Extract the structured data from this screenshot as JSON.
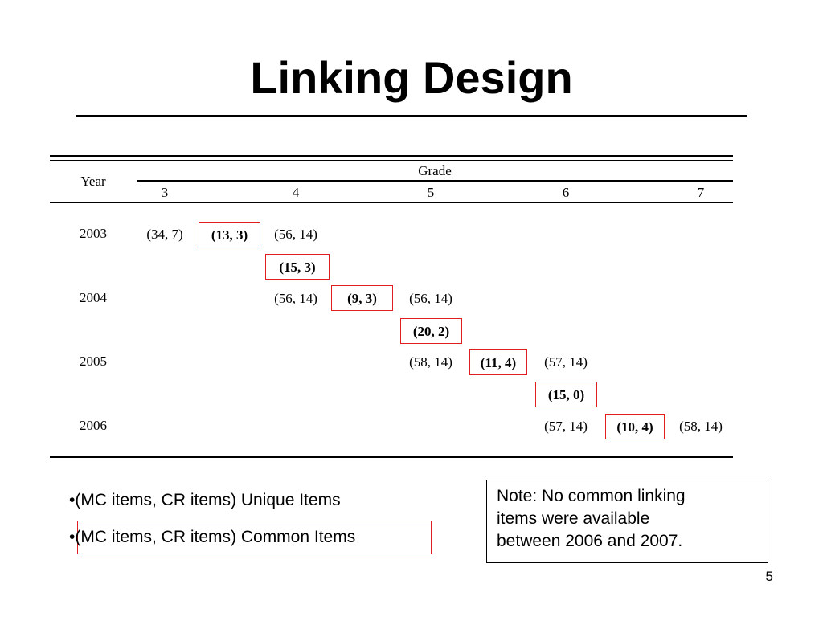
{
  "slide": {
    "title": "Linking Design",
    "page_number": "5"
  },
  "table": {
    "year_header": "Year",
    "grade_header": "Grade",
    "grades": [
      "3",
      "4",
      "5",
      "6",
      "7"
    ],
    "rows": [
      {
        "year": "2003",
        "entries": [
          {
            "text": "(34, 7)",
            "common": false
          },
          {
            "text": "(13, 3)",
            "common": true
          },
          {
            "text": "(56, 14)",
            "common": false
          }
        ],
        "link": "(15, 3)"
      },
      {
        "year": "2004",
        "entries": [
          {
            "text": "(56, 14)",
            "common": false
          },
          {
            "text": "(9, 3)",
            "common": true
          },
          {
            "text": "(56, 14)",
            "common": false
          }
        ],
        "link": "(20, 2)"
      },
      {
        "year": "2005",
        "entries": [
          {
            "text": "(58, 14)",
            "common": false
          },
          {
            "text": "(11, 4)",
            "common": true
          },
          {
            "text": "(57, 14)",
            "common": false
          }
        ],
        "link": "(15, 0)"
      },
      {
        "year": "2006",
        "entries": [
          {
            "text": "(57, 14)",
            "common": false
          },
          {
            "text": "(10, 4)",
            "common": true
          },
          {
            "text": "(58, 14)",
            "common": false
          }
        ],
        "link": ""
      }
    ]
  },
  "legend": {
    "unique": "•(MC items, CR items) Unique Items",
    "common": "•(MC items, CR items) Common Items",
    "box_color": "#e02020"
  },
  "note": {
    "lines": [
      "Note: No common linking",
      "items were available",
      "between 2006 and 2007."
    ]
  }
}
